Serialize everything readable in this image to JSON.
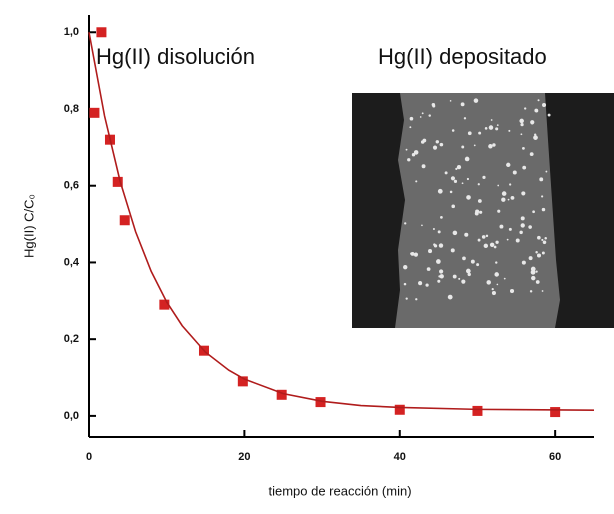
{
  "chart_data": {
    "type": "scatter",
    "annotations": [
      "Hg(II) disolución",
      "Hg(II) depositado"
    ],
    "xlabel": "tiempo de reacción (min)",
    "ylabel": "Hg(II) C/C₀",
    "xlim": [
      0,
      65
    ],
    "xticks": [
      0,
      20,
      40,
      60
    ],
    "ylim": [
      -0.055,
      1.045
    ],
    "yticks": [
      {
        "value": 0,
        "label": "0,0"
      },
      {
        "value": 0.2,
        "label": "0,2"
      },
      {
        "value": 0.4,
        "label": "0,4"
      },
      {
        "value": 0.6,
        "label": "0,6"
      },
      {
        "value": 0.8,
        "label": "0,8"
      },
      {
        "value": 1,
        "label": "1,0"
      }
    ],
    "series": [
      {
        "style": "markers",
        "color": "#d42222",
        "x": [
          0.7,
          1.6,
          2.7,
          3.7,
          4.6,
          9.7,
          14.8,
          19.8,
          24.8,
          29.8,
          40,
          50,
          60
        ],
        "values": [
          0.79,
          1.0,
          0.72,
          0.61,
          0.51,
          0.29,
          0.17,
          0.09,
          0.055,
          0.036,
          0.016,
          0.013,
          0.01
        ]
      },
      {
        "style": "line",
        "color": "#b01c1c",
        "x": [
          0,
          2,
          4,
          6,
          8,
          10,
          12,
          15,
          18,
          20,
          25,
          30,
          35,
          40,
          50,
          65
        ],
        "values": [
          1.0,
          0.782,
          0.612,
          0.48,
          0.377,
          0.297,
          0.235,
          0.166,
          0.119,
          0.096,
          0.058,
          0.038,
          0.027,
          0.022,
          0.017,
          0.015
        ]
      }
    ]
  }
}
